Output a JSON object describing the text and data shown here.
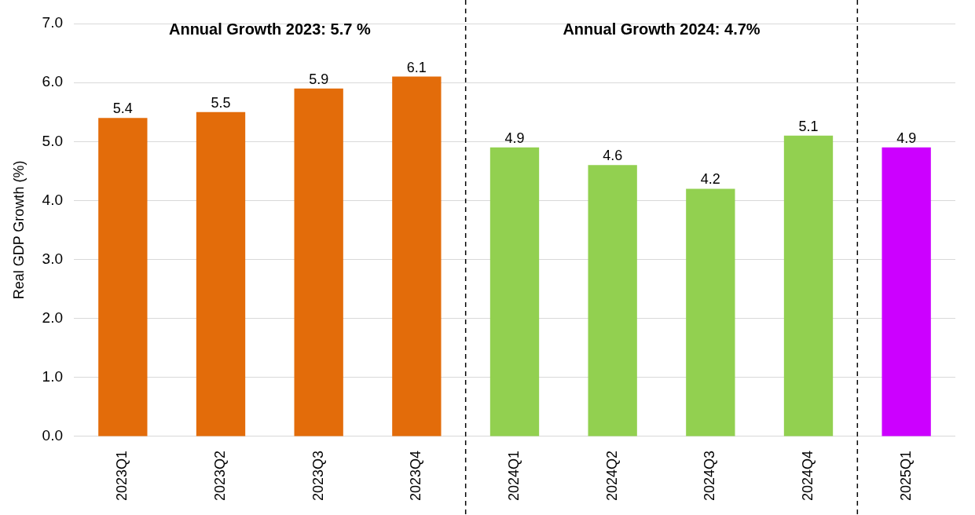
{
  "chart_data": {
    "type": "bar",
    "ylabel": "Real GDP Growth (%)",
    "categories": [
      "2023Q1",
      "2023Q2",
      "2023Q3",
      "2023Q4",
      "2024Q1",
      "2024Q2",
      "2024Q3",
      "2024Q4",
      "2025Q1"
    ],
    "values": [
      5.4,
      5.5,
      5.9,
      6.1,
      4.9,
      4.6,
      4.2,
      5.1,
      4.9
    ],
    "colors": [
      "#e36c0a",
      "#e36c0a",
      "#e36c0a",
      "#e36c0a",
      "#92d050",
      "#92d050",
      "#92d050",
      "#92d050",
      "#cc00ff"
    ],
    "ylim": [
      0,
      7
    ],
    "yticks": [
      {
        "value": 0,
        "label": "0.0"
      },
      {
        "value": 1,
        "label": "1.0"
      },
      {
        "value": 2,
        "label": "2.0"
      },
      {
        "value": 3,
        "label": "3.0"
      },
      {
        "value": 4,
        "label": "4.0"
      },
      {
        "value": 5,
        "label": "5.0"
      },
      {
        "value": 6,
        "label": "6.0"
      },
      {
        "value": 7,
        "label": "7.0"
      }
    ],
    "grid": "y",
    "legend": false,
    "data_labels": true,
    "annotations": [
      "Annual Growth 2023: 5.7 %",
      "Annual Growth 2024: 4.7%"
    ]
  }
}
